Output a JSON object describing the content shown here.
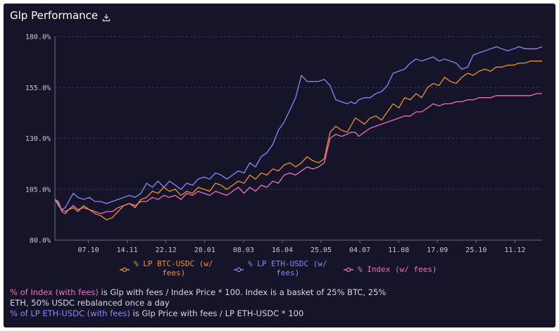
{
  "header": {
    "title": "Glp Performance",
    "icon": "download-icon"
  },
  "chart_data": {
    "type": "line",
    "title": "Glp Performance",
    "xlabel": "",
    "ylabel": "",
    "ylim": [
      80,
      180
    ],
    "y_ticks": [
      80,
      105,
      130,
      155,
      180
    ],
    "y_tick_labels": [
      "80.0%",
      "105.0%",
      "130.0%",
      "155.0%",
      "180.0%"
    ],
    "x_tick_labels": [
      "07.10",
      "14.11",
      "22.12",
      "28.01",
      "08.03",
      "16.04",
      "25.05",
      "04.07",
      "11.08",
      "17.09",
      "25.10",
      "11.12"
    ],
    "grid": true,
    "legend_position": "bottom",
    "series": [
      {
        "name": "% LP BTC-USDC (w/ fees)",
        "name_lines": [
          "% LP BTC-USDC (w/",
          "fees)"
        ],
        "color": "#f0902d",
        "x": [
          0,
          3,
          6,
          9,
          12,
          16,
          20,
          25,
          30,
          35,
          40,
          45,
          50,
          55,
          60,
          65,
          70,
          75,
          80,
          85,
          90,
          95,
          100,
          105,
          110,
          115,
          120,
          125,
          130,
          135,
          140,
          145,
          150,
          155,
          160,
          165,
          170,
          175,
          180,
          185,
          190,
          195,
          200,
          205,
          210,
          215,
          220,
          225,
          230,
          235,
          240,
          245,
          250,
          255,
          258,
          262,
          265,
          270,
          275,
          280,
          285,
          290,
          295,
          300,
          305,
          310,
          315,
          320,
          325,
          330,
          335,
          340,
          345,
          350,
          355,
          360,
          365,
          370,
          375,
          380,
          385,
          390,
          395,
          400,
          405,
          410,
          415,
          420,
          425
        ],
        "values": [
          100,
          99,
          94,
          93,
          95,
          96,
          94,
          97,
          95,
          93,
          92,
          90,
          91,
          94,
          97,
          98,
          96,
          100,
          101,
          104,
          103,
          106,
          104,
          105,
          102,
          104,
          103,
          106,
          105,
          104,
          108,
          107,
          105,
          107,
          109,
          108,
          112,
          110,
          113,
          112,
          115,
          114,
          117,
          118,
          116,
          118,
          121,
          119,
          118,
          120,
          133,
          136,
          134,
          133,
          136,
          140,
          139,
          137,
          140,
          141,
          139,
          143,
          147,
          145,
          150,
          149,
          152,
          150,
          155,
          157,
          156,
          160,
          158,
          157,
          160,
          162,
          161,
          163,
          164,
          163,
          165,
          165,
          166,
          166,
          167,
          167,
          168,
          168,
          168
        ]
      },
      {
        "name": "% LP ETH-USDC (w/ fees)",
        "name_lines": [
          "% LP ETH-USDC (w/",
          "fees)"
        ],
        "color": "#8f86ff",
        "x": [
          0,
          3,
          6,
          9,
          12,
          16,
          20,
          25,
          30,
          35,
          40,
          45,
          50,
          55,
          60,
          65,
          70,
          75,
          80,
          85,
          90,
          95,
          100,
          105,
          110,
          115,
          120,
          125,
          130,
          135,
          140,
          145,
          150,
          155,
          160,
          165,
          170,
          175,
          180,
          185,
          190,
          195,
          200,
          205,
          210,
          215,
          220,
          225,
          230,
          235,
          240,
          245,
          250,
          255,
          258,
          262,
          265,
          270,
          275,
          280,
          285,
          290,
          295,
          300,
          305,
          310,
          315,
          320,
          325,
          330,
          335,
          340,
          345,
          350,
          355,
          360,
          365,
          370,
          375,
          380,
          385,
          390,
          395,
          400,
          405,
          410,
          415,
          420,
          425
        ],
        "values": [
          100,
          97,
          95,
          96,
          99,
          103,
          101,
          100,
          101,
          99,
          99,
          98,
          99,
          100,
          101,
          102,
          101,
          103,
          108,
          106,
          109,
          106,
          109,
          107,
          105,
          108,
          107,
          110,
          111,
          110,
          113,
          112,
          110,
          112,
          114,
          113,
          118,
          116,
          121,
          123,
          127,
          134,
          138,
          144,
          150,
          161,
          158,
          158,
          158,
          159,
          156,
          149,
          148,
          147,
          148,
          147,
          149,
          150,
          150,
          152,
          153,
          156,
          162,
          163,
          164,
          167,
          169,
          168,
          169,
          170,
          168,
          169,
          168,
          167,
          164,
          165,
          171,
          172,
          173,
          174,
          175,
          174,
          173,
          174,
          175,
          174,
          174,
          174,
          175
        ]
      },
      {
        "name": "% Index (w/ fees)",
        "name_lines": [
          "% Index (w/ fees)"
        ],
        "color": "#ee6fc0",
        "x": [
          0,
          3,
          6,
          9,
          12,
          16,
          20,
          25,
          30,
          35,
          40,
          45,
          50,
          55,
          60,
          65,
          70,
          75,
          80,
          85,
          90,
          95,
          100,
          105,
          110,
          115,
          120,
          125,
          130,
          135,
          140,
          145,
          150,
          155,
          160,
          165,
          170,
          175,
          180,
          185,
          190,
          195,
          200,
          205,
          210,
          215,
          220,
          225,
          230,
          235,
          240,
          245,
          250,
          255,
          258,
          262,
          265,
          270,
          275,
          280,
          285,
          290,
          295,
          300,
          305,
          310,
          315,
          320,
          325,
          330,
          335,
          340,
          345,
          350,
          355,
          360,
          365,
          370,
          375,
          380,
          385,
          390,
          395,
          400,
          405,
          410,
          415,
          420,
          425
        ],
        "values": [
          100,
          98,
          95,
          94,
          95,
          97,
          95,
          96,
          95,
          94,
          93,
          94,
          94,
          96,
          97,
          98,
          97,
          99,
          99,
          101,
          100,
          102,
          101,
          102,
          100,
          103,
          102,
          104,
          103,
          102,
          104,
          103,
          102,
          104,
          106,
          103,
          106,
          104,
          107,
          106,
          109,
          108,
          112,
          113,
          112,
          114,
          116,
          115,
          116,
          118,
          130,
          132,
          131,
          132,
          133,
          133,
          131,
          133,
          135,
          136,
          137,
          138,
          139,
          140,
          141,
          141,
          143,
          143,
          145,
          147,
          146,
          147,
          147,
          148,
          148,
          149,
          149,
          150,
          150,
          150,
          151,
          151,
          151,
          151,
          151,
          151,
          151,
          152,
          152
        ]
      }
    ]
  },
  "footnote": {
    "line1_highlight": "% of Index (with fees)",
    "line1_text": " is Glp with fees / Index Price * 100. Index is a basket of 25% BTC, 25% ETH, 50% USDC rebalanced once a day",
    "line2_highlight": "% of LP ETH-USDC (with fees)",
    "line2_text": " is Glp Price with fees / LP ETH-USDC * 100"
  }
}
